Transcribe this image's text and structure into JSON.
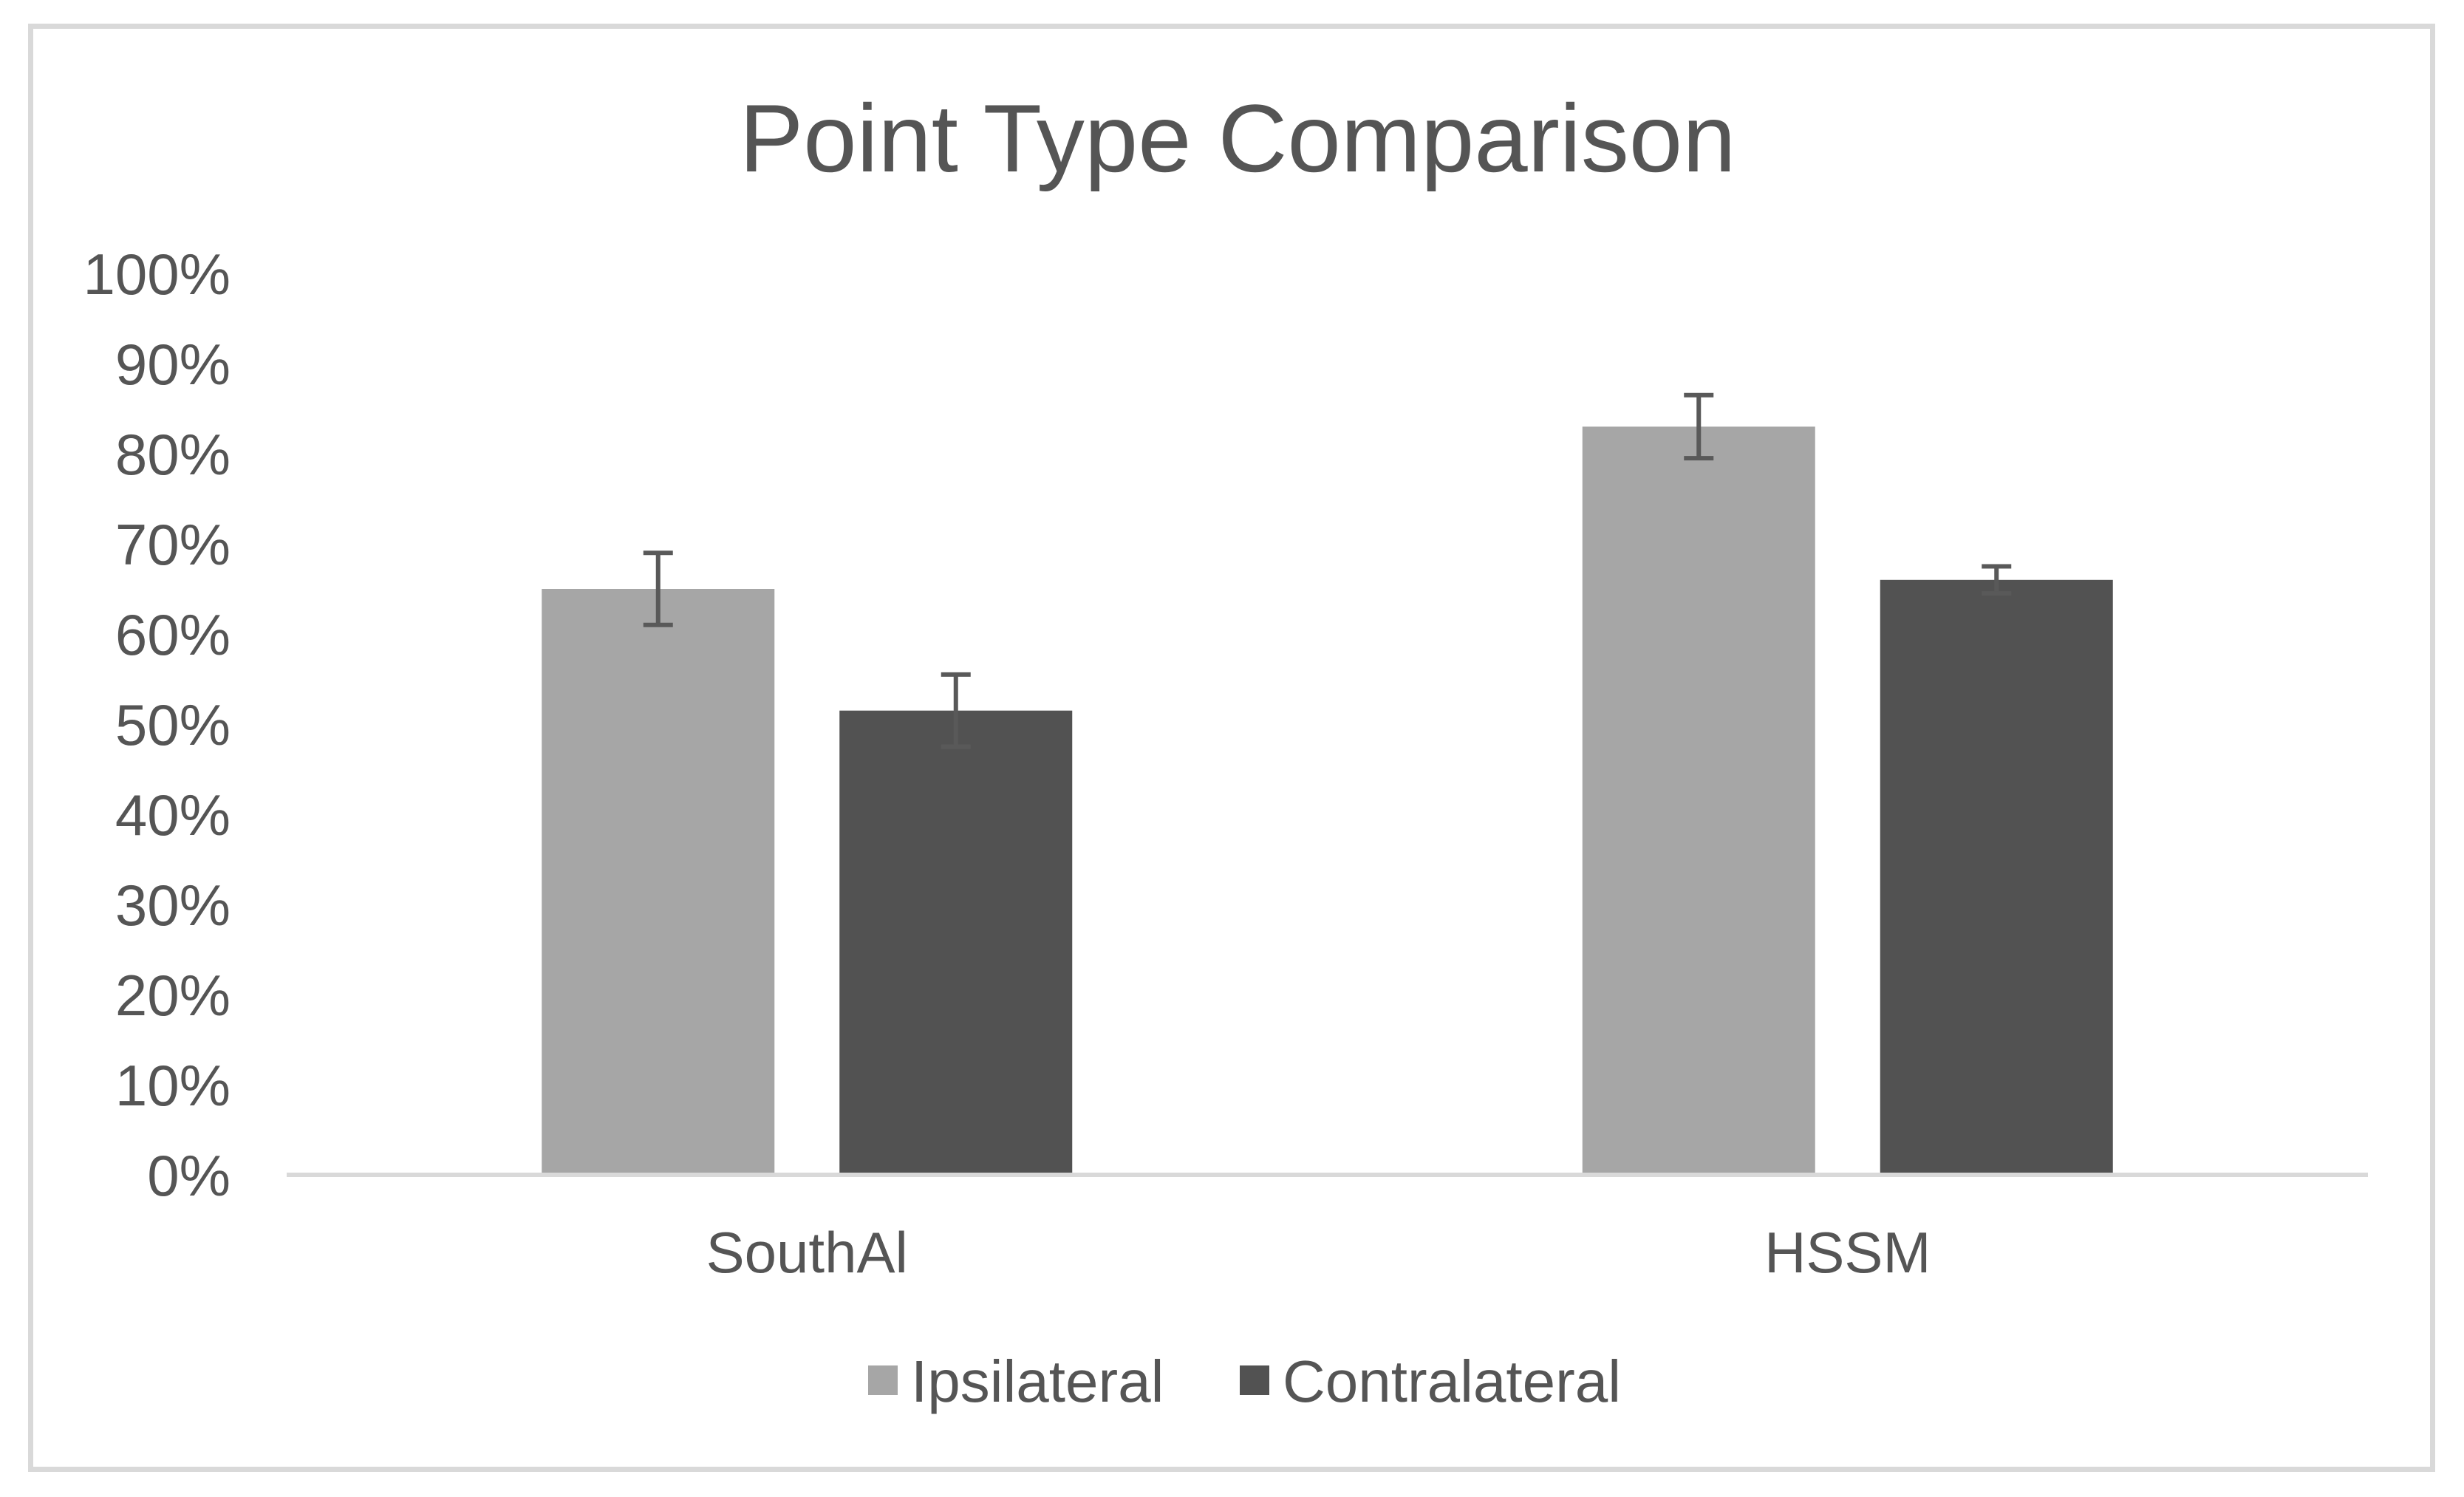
{
  "chart_data": {
    "type": "bar",
    "title": "Point Type Comparison",
    "xlabel": "",
    "ylabel": "",
    "categories": [
      "SouthAl",
      "HSSM"
    ],
    "series": [
      {
        "name": "Ipsilateral",
        "color": "#a6a6a6",
        "values": [
          0.65,
          0.83
        ],
        "error": [
          0.04,
          0.035
        ]
      },
      {
        "name": "Contralateral",
        "color": "#525252",
        "values": [
          0.515,
          0.66
        ],
        "error": [
          0.04,
          0.015
        ]
      }
    ],
    "ylim": [
      0,
      1
    ],
    "yticks": [
      "0%",
      "10%",
      "20%",
      "30%",
      "40%",
      "50%",
      "60%",
      "70%",
      "80%",
      "90%",
      "100%"
    ],
    "grid": false,
    "legend_position": "bottom"
  }
}
